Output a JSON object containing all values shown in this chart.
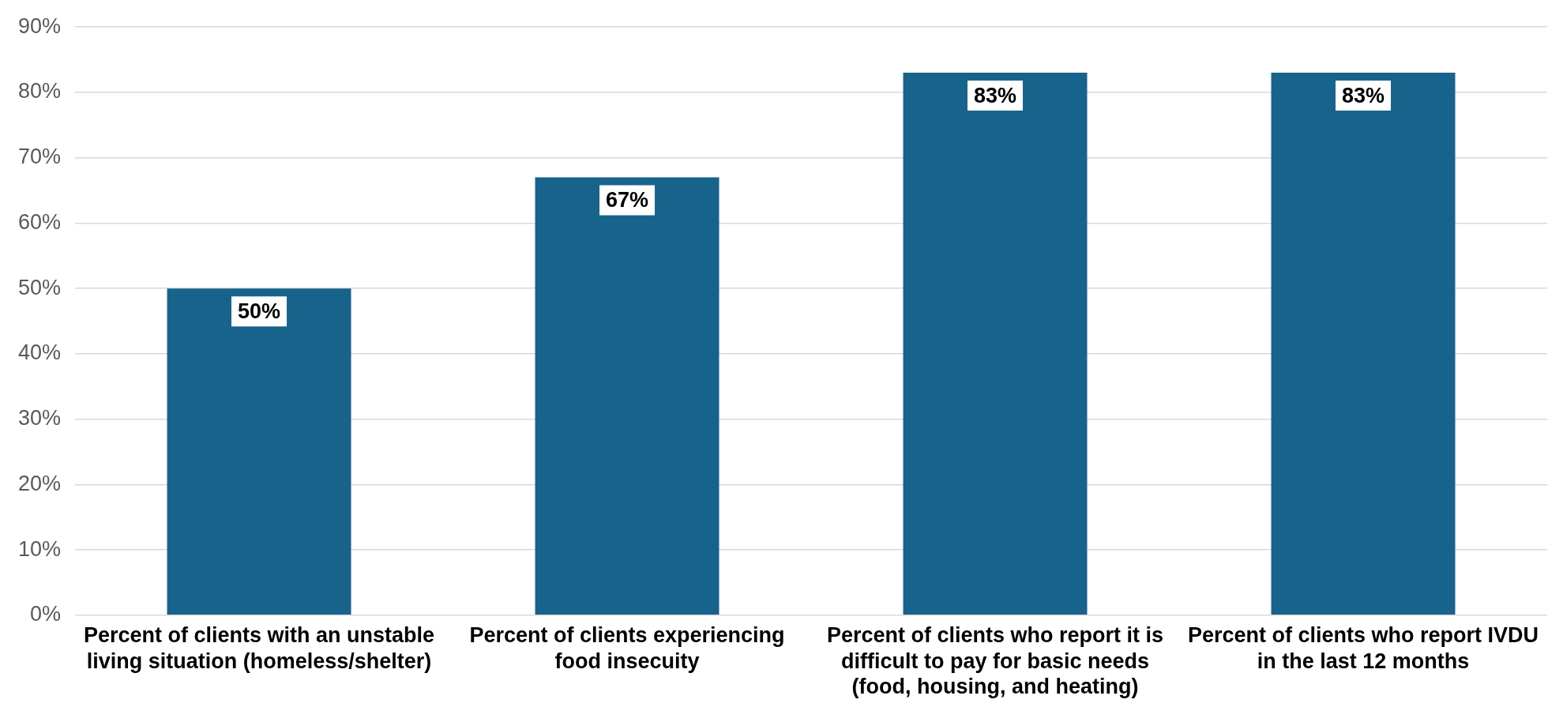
{
  "chart_data": {
    "type": "bar",
    "categories": [
      "Percent of clients with an unstable living situation (homeless/shelter)",
      "Percent of clients experiencing food insecuity",
      "Percent of clients who report it is difficult to pay for basic needs (food, housing, and heating)",
      "Percent of clients who report IVDU in the last 12 months"
    ],
    "values": [
      50,
      67,
      83,
      83
    ],
    "value_labels": [
      "50%",
      "67%",
      "83%",
      "83%"
    ],
    "color": "#17638b",
    "ylim": [
      0,
      90
    ],
    "yticks": [
      {
        "value": 0,
        "label": "0%"
      },
      {
        "value": 10,
        "label": "10%"
      },
      {
        "value": 20,
        "label": "20%"
      },
      {
        "value": 30,
        "label": "30%"
      },
      {
        "value": 40,
        "label": "40%"
      },
      {
        "value": 50,
        "label": "50%"
      },
      {
        "value": 60,
        "label": "60%"
      },
      {
        "value": 70,
        "label": "70%"
      },
      {
        "value": 80,
        "label": "80%"
      },
      {
        "value": 90,
        "label": "90%"
      }
    ],
    "grid": "y",
    "legend": false
  }
}
